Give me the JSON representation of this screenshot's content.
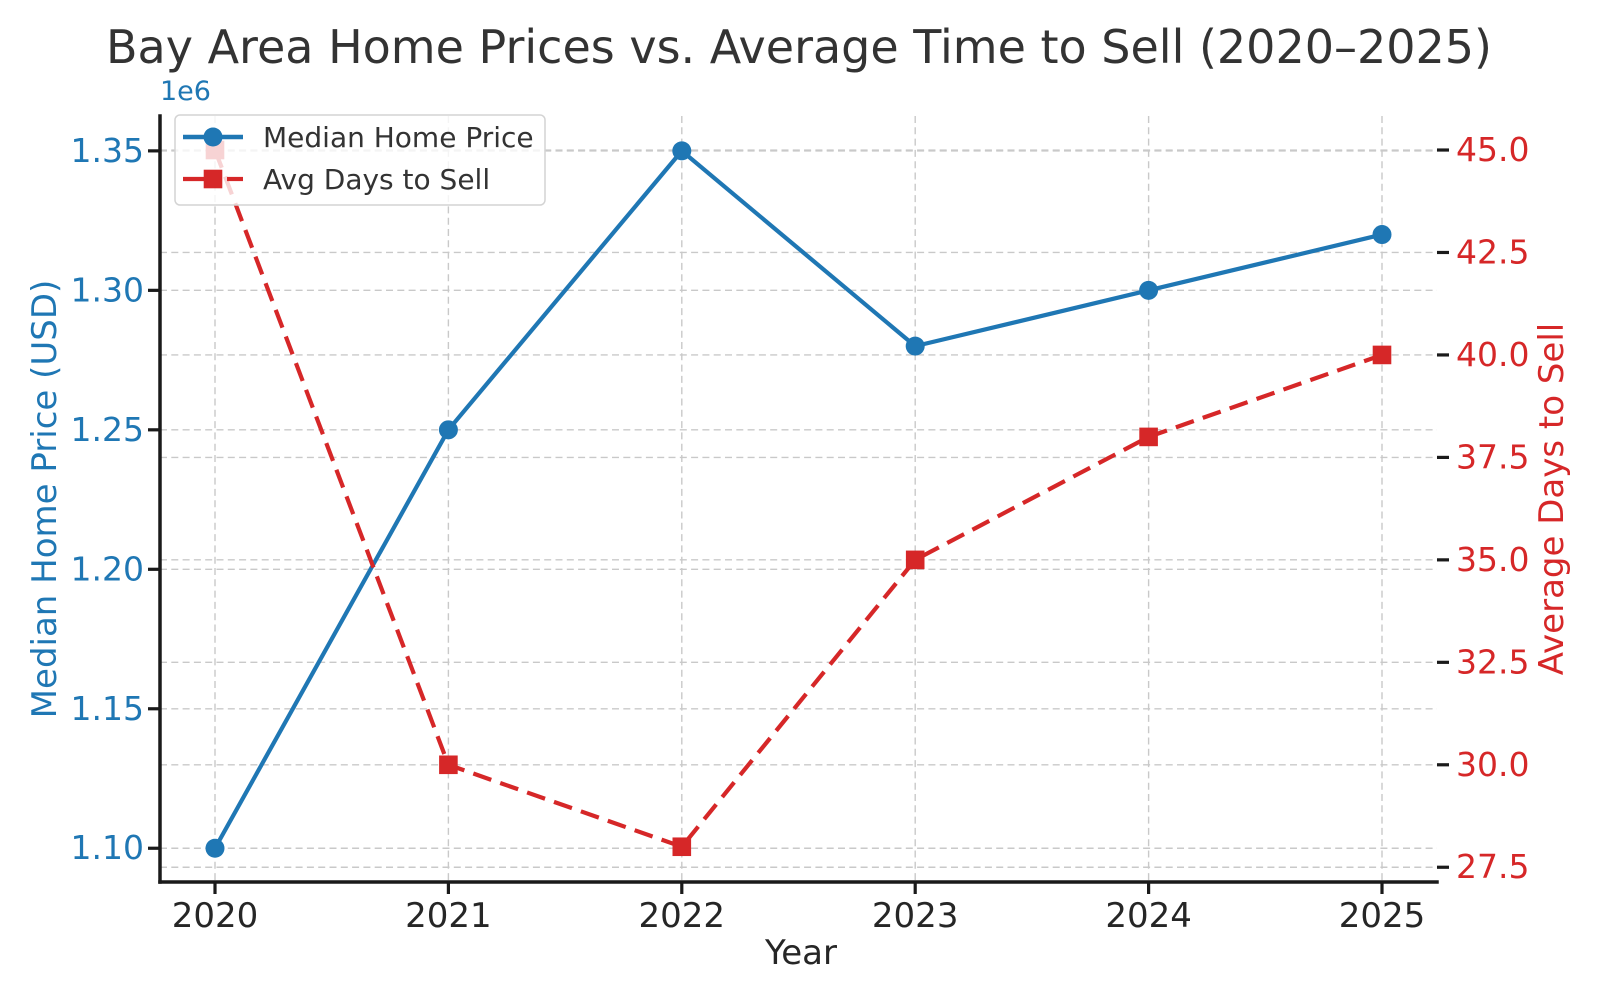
{
  "chart_data": {
    "type": "line",
    "title": "Bay Area Home Prices vs. Average Time to Sell (2020–2025)",
    "xlabel": "Year",
    "x": [
      2020,
      2021,
      2022,
      2023,
      2024,
      2025
    ],
    "x_tick_labels": [
      "2020",
      "2021",
      "2022",
      "2023",
      "2024",
      "2025"
    ],
    "series": [
      {
        "name": "Median Home Price",
        "axis": "left",
        "color": "#1f77b4",
        "marker": "circle",
        "linestyle": "solid",
        "values": [
          1100000,
          1250000,
          1350000,
          1280000,
          1300000,
          1320000
        ]
      },
      {
        "name": "Avg Days to Sell",
        "axis": "right",
        "color": "#d62728",
        "marker": "square",
        "linestyle": "dashed",
        "values": [
          45,
          30,
          28,
          35,
          38,
          40
        ]
      }
    ],
    "left_axis": {
      "label": "Median Home Price (USD)",
      "color": "#1f77b4",
      "offset_text": "1e6",
      "tick_values": [
        1100000,
        1150000,
        1200000,
        1250000,
        1300000,
        1350000
      ],
      "tick_labels": [
        "1.10",
        "1.15",
        "1.20",
        "1.25",
        "1.30",
        "1.35"
      ],
      "range": [
        1087900,
        1362500
      ]
    },
    "right_axis": {
      "label": "Average Days to Sell",
      "color": "#d62728",
      "tick_values": [
        27.5,
        30.0,
        32.5,
        35.0,
        37.5,
        40.0,
        42.5,
        45.0
      ],
      "tick_labels": [
        "27.5",
        "30.0",
        "32.5",
        "35.0",
        "37.5",
        "40.0",
        "42.5",
        "45.0"
      ],
      "range": [
        27.14,
        45.83
      ]
    },
    "legend": {
      "position": "upper left",
      "items": [
        "Median Home Price",
        "Avg Days to Sell"
      ]
    },
    "grid": true
  },
  "colors": {
    "background": "#ffffff",
    "grid": "#c9c9c9",
    "spine": "#1a1a1a",
    "tick_label": "#262626",
    "title": "#333333",
    "legend_border": "#d4d4d4",
    "legend_fill": "#ffffff"
  }
}
